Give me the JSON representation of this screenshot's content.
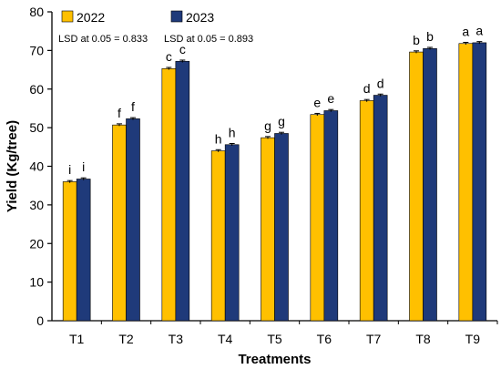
{
  "chart_data": {
    "type": "bar",
    "title": "",
    "xlabel": "Treatments",
    "ylabel": "Yield (Kg/tree)",
    "ylim": [
      0,
      80
    ],
    "yticks": [
      0,
      10,
      20,
      30,
      40,
      50,
      60,
      70,
      80
    ],
    "grid": false,
    "legend_position": "top-left",
    "categories": [
      "T1",
      "T2",
      "T3",
      "T4",
      "T5",
      "T6",
      "T7",
      "T8",
      "T9"
    ],
    "series": [
      {
        "name": "2022",
        "color": "#FFC000",
        "values": [
          36.0,
          50.7,
          65.3,
          44.0,
          47.4,
          53.4,
          57.0,
          69.6,
          71.8
        ],
        "error": [
          0.3,
          0.3,
          0.3,
          0.3,
          0.3,
          0.3,
          0.3,
          0.3,
          0.3
        ],
        "letters": [
          "i",
          "f",
          "c",
          "h",
          "g",
          "e",
          "d",
          "b",
          "a"
        ],
        "lsd": "LSD at 0.05 = 0.833"
      },
      {
        "name": "2023",
        "color": "#1F3A7A",
        "values": [
          36.7,
          52.3,
          67.2,
          45.6,
          48.5,
          54.4,
          58.4,
          70.5,
          72.0
        ],
        "error": [
          0.3,
          0.3,
          0.3,
          0.3,
          0.3,
          0.3,
          0.3,
          0.3,
          0.3
        ],
        "letters": [
          "i",
          "f",
          "c",
          "h",
          "g",
          "e",
          "d",
          "b",
          "a"
        ],
        "lsd": "LSD at 0.05 = 0.893"
      }
    ]
  }
}
